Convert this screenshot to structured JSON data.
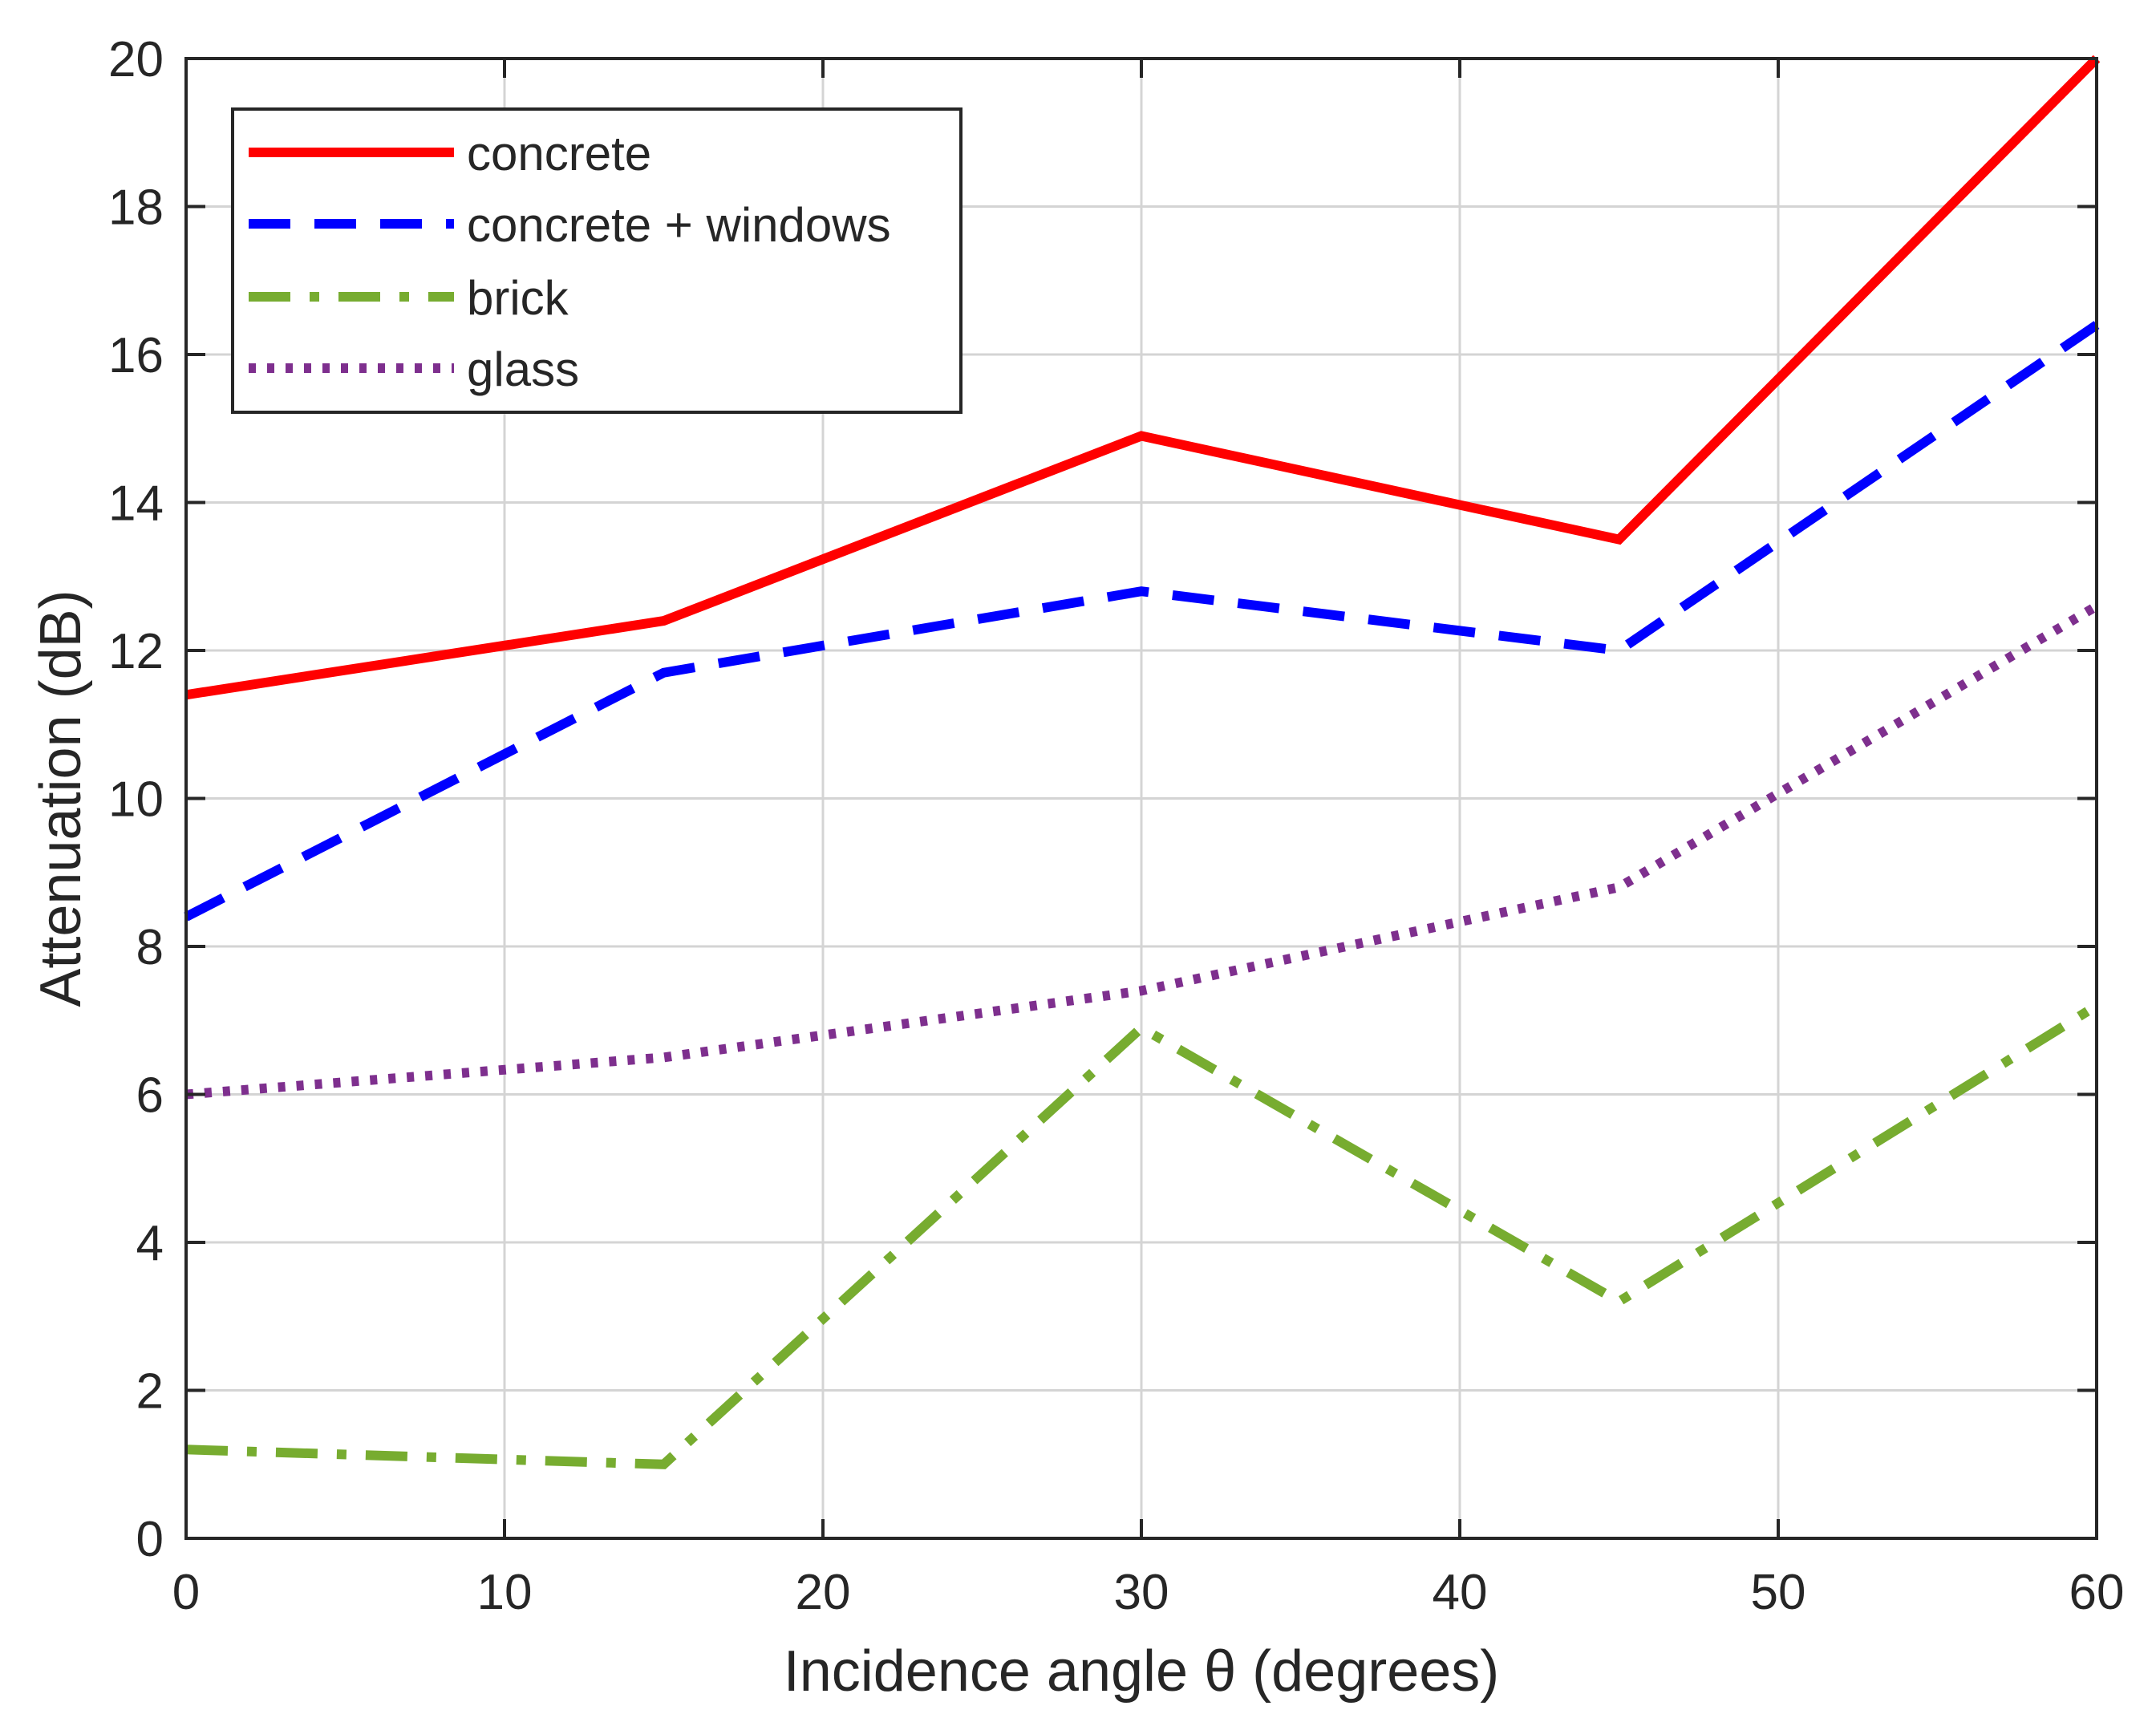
{
  "chart_data": {
    "type": "line",
    "title": "",
    "xlabel": "Incidence angle θ (degrees)",
    "ylabel": "Attenuation (dB)",
    "xlim": [
      0,
      60
    ],
    "ylim": [
      0,
      20
    ],
    "xticks": [
      0,
      10,
      20,
      30,
      40,
      50,
      60
    ],
    "yticks": [
      0,
      2,
      4,
      6,
      8,
      10,
      12,
      14,
      16,
      18,
      20
    ],
    "grid": true,
    "legend_position": "top-left",
    "x": [
      0,
      15,
      30,
      45,
      60
    ],
    "series": [
      {
        "name": "concrete",
        "values": [
          11.4,
          12.4,
          14.9,
          13.5,
          20.0
        ],
        "color": "#ff0000",
        "style": "solid"
      },
      {
        "name": "concrete + windows",
        "values": [
          8.4,
          11.7,
          12.8,
          12.0,
          16.4
        ],
        "color": "#0000ff",
        "style": "dashed"
      },
      {
        "name": "brick",
        "values": [
          1.2,
          1.0,
          6.9,
          3.2,
          7.2
        ],
        "color": "#77ac30",
        "style": "dashdot"
      },
      {
        "name": "glass",
        "values": [
          6.0,
          6.5,
          7.4,
          8.8,
          12.6
        ],
        "color": "#7e2f8e",
        "style": "dotted"
      }
    ]
  }
}
